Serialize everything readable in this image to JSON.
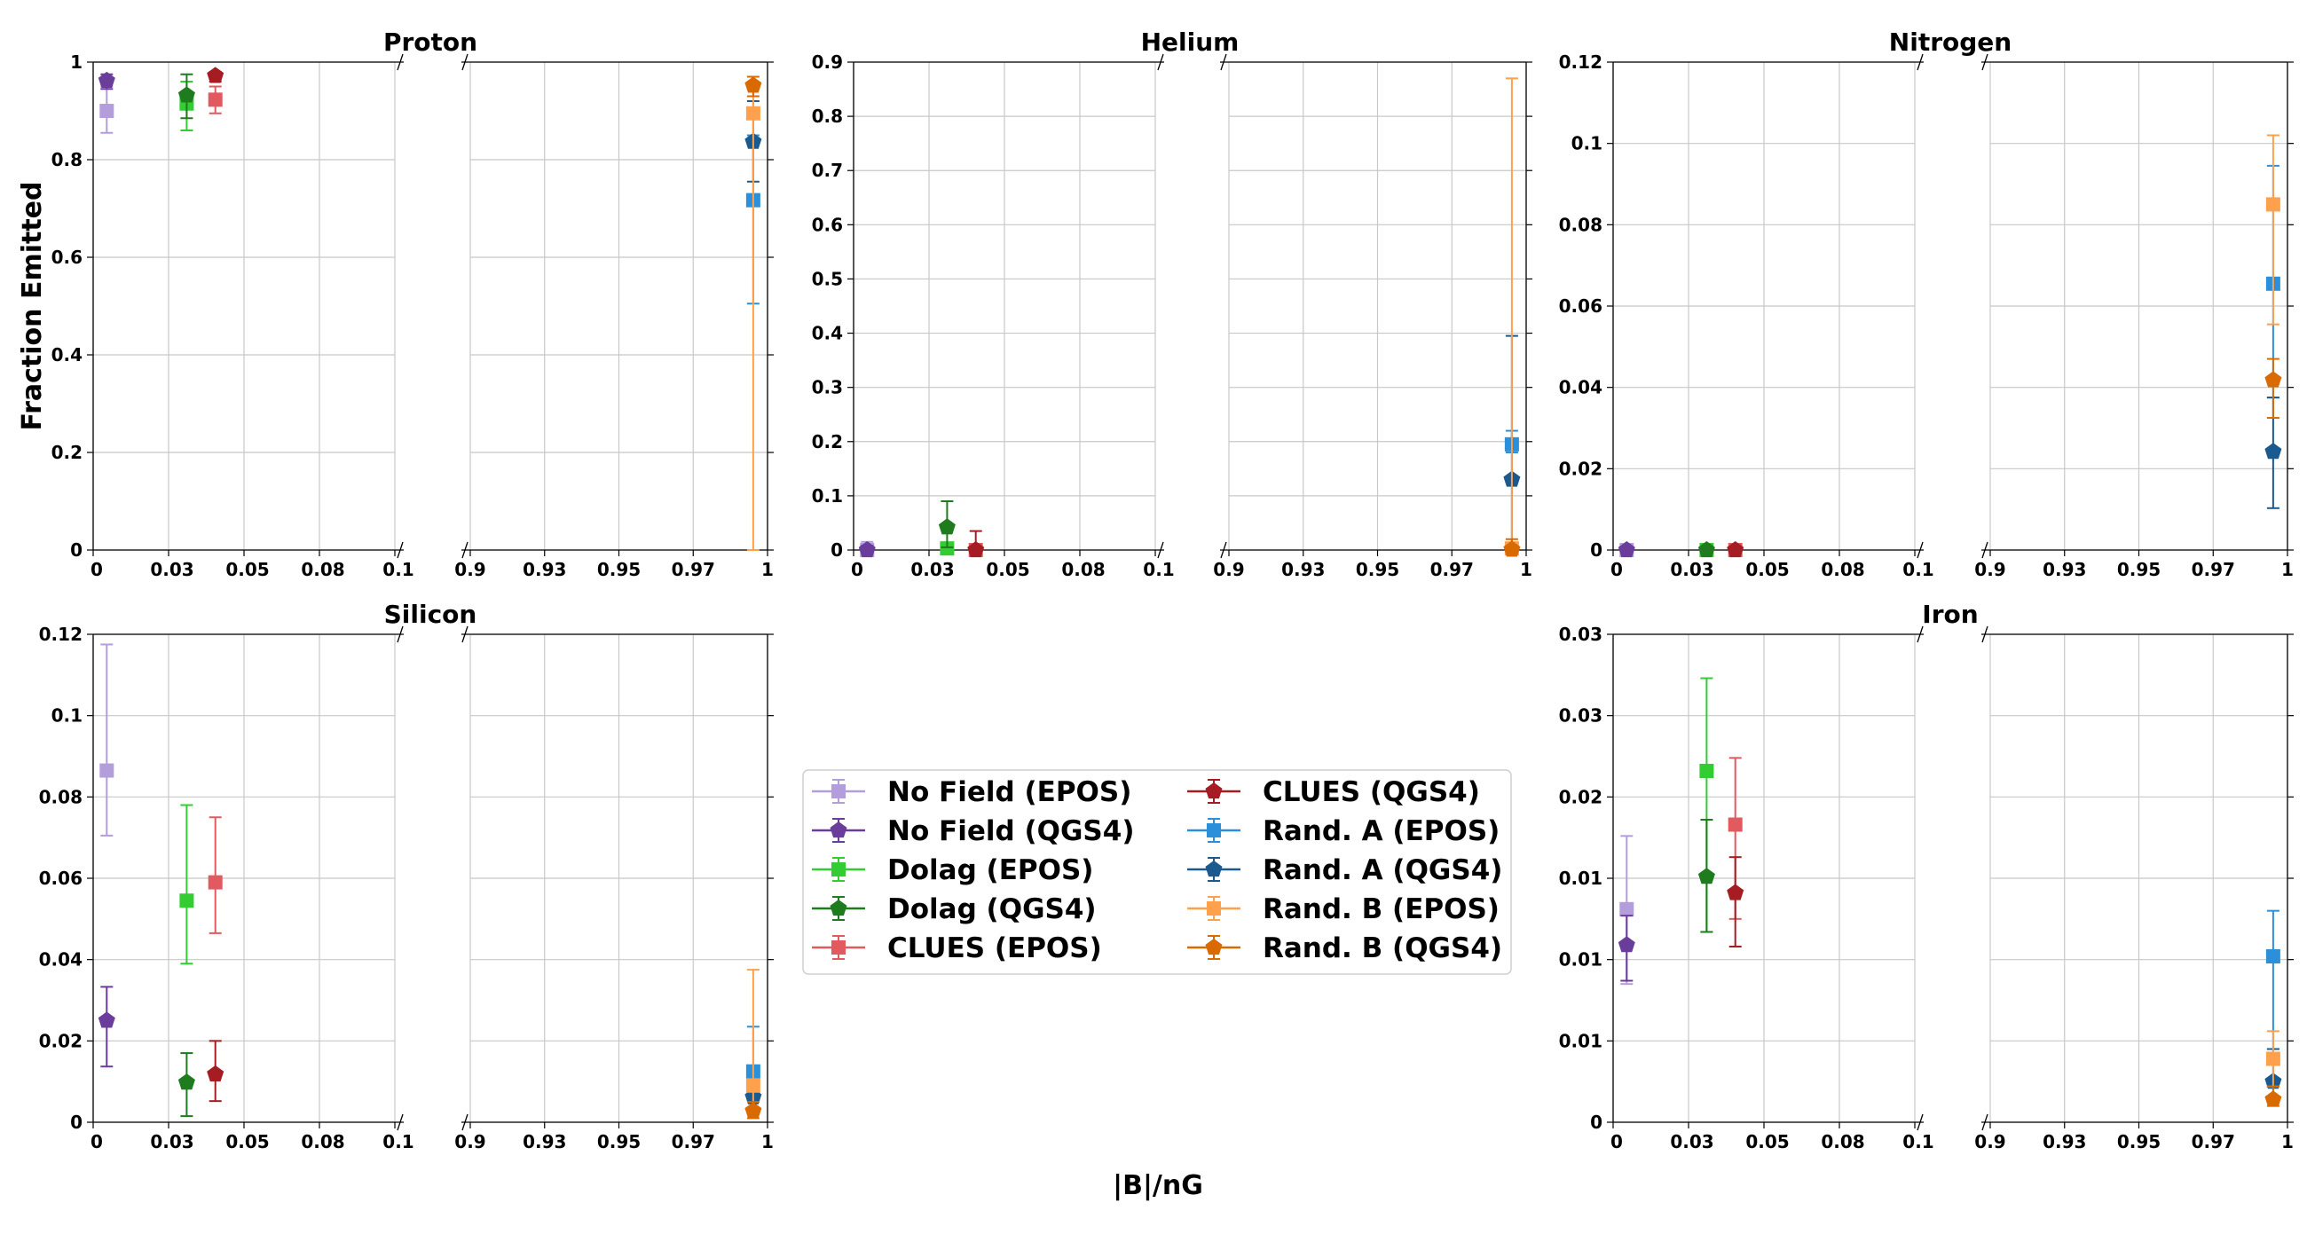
{
  "chart_data": {
    "type": "scatter",
    "xlabel": "|B|/nG",
    "ylabel": "Fraction Emitted",
    "x_categories": [
      "No Field",
      "Dolag",
      "CLUES",
      "Rand."
    ],
    "x_ticks_left": [
      "0",
      "0.03",
      "0.05",
      "0.08",
      "0.1"
    ],
    "x_ticks_right": [
      "0.9",
      "0.93",
      "0.95",
      "0.97",
      "1"
    ],
    "x_axis_broken": true,
    "grid": true,
    "legend": {
      "placement": "center",
      "columns": 2,
      "entries": [
        {
          "name": "No Field (EPOS)",
          "color": "#b39ddb",
          "marker": "square"
        },
        {
          "name": "No Field (QGS4)",
          "color": "#6a3d9a",
          "marker": "pentagon"
        },
        {
          "name": "Dolag (EPOS)",
          "color": "#33cc33",
          "marker": "square"
        },
        {
          "name": "Dolag (QGS4)",
          "color": "#1e7b1e",
          "marker": "pentagon"
        },
        {
          "name": "CLUES (EPOS)",
          "color": "#e05a5f",
          "marker": "square"
        },
        {
          "name": "CLUES (QGS4)",
          "color": "#a51c22",
          "marker": "pentagon"
        },
        {
          "name": "Rand. A (EPOS)",
          "color": "#2b8fd9",
          "marker": "square"
        },
        {
          "name": "Rand. A (QGS4)",
          "color": "#1b5a8e",
          "marker": "pentagon"
        },
        {
          "name": "Rand. B (EPOS)",
          "color": "#ffa04d",
          "marker": "square"
        },
        {
          "name": "Rand. B (QGS4)",
          "color": "#d96a00",
          "marker": "pentagon"
        }
      ]
    },
    "panels": [
      {
        "title": "Proton",
        "yticks": [
          "0",
          "0.2",
          "0.4",
          "0.6",
          "0.8",
          "1"
        ],
        "ylim": [
          0,
          1
        ],
        "points": [
          {
            "series": 0,
            "value": 0.9,
            "lo": 0.855,
            "hi": 0.95
          },
          {
            "series": 1,
            "value": 0.962,
            "lo": 0.945,
            "hi": 0.975
          },
          {
            "series": 2,
            "value": 0.915,
            "lo": 0.86,
            "hi": 0.96
          },
          {
            "series": 3,
            "value": 0.932,
            "lo": 0.885,
            "hi": 0.975
          },
          {
            "series": 4,
            "value": 0.923,
            "lo": 0.895,
            "hi": 0.95
          },
          {
            "series": 5,
            "value": 0.972,
            "lo": 0.96,
            "hi": 0.98
          },
          {
            "series": 6,
            "value": 0.717,
            "lo": 0.505,
            "hi": 0.85
          },
          {
            "series": 7,
            "value": 0.837,
            "lo": 0.755,
            "hi": 0.92
          },
          {
            "series": 8,
            "value": 0.895,
            "lo": 0.0,
            "hi": 0.96
          },
          {
            "series": 9,
            "value": 0.952,
            "lo": 0.93,
            "hi": 0.97
          }
        ]
      },
      {
        "title": "Helium",
        "yticks": [
          "0",
          "0.1",
          "0.2",
          "0.3",
          "0.4",
          "0.5",
          "0.6",
          "0.7",
          "0.8",
          "0.9"
        ],
        "ylim": [
          0,
          0.9
        ],
        "points": [
          {
            "series": 0,
            "value": 0.0,
            "lo": 0.0,
            "hi": 0.015
          },
          {
            "series": 1,
            "value": 0.0,
            "lo": 0.0,
            "hi": 0.008
          },
          {
            "series": 2,
            "value": 0.003,
            "lo": 0.0,
            "hi": 0.01
          },
          {
            "series": 3,
            "value": 0.042,
            "lo": 0.005,
            "hi": 0.09
          },
          {
            "series": 4,
            "value": 0.0,
            "lo": 0.0,
            "hi": 0.005
          },
          {
            "series": 5,
            "value": 0.0,
            "lo": 0.0,
            "hi": 0.035
          },
          {
            "series": 6,
            "value": 0.195,
            "lo": 0.18,
            "hi": 0.22
          },
          {
            "series": 7,
            "value": 0.13,
            "lo": 0.01,
            "hi": 0.395
          },
          {
            "series": 8,
            "value": 0.003,
            "lo": 0.0,
            "hi": 0.87
          },
          {
            "series": 9,
            "value": 0.001,
            "lo": 0.0,
            "hi": 0.02
          }
        ]
      },
      {
        "title": "Nitrogen",
        "yticks": [
          "0",
          "0.02",
          "0.04",
          "0.06",
          "0.08",
          "0.1",
          "0.12"
        ],
        "ylim": [
          0,
          0.12
        ],
        "points": [
          {
            "series": 0,
            "value": 0.0,
            "lo": 0.0,
            "hi": 0.0003
          },
          {
            "series": 1,
            "value": 0.0,
            "lo": 0.0,
            "hi": 0.0003
          },
          {
            "series": 2,
            "value": 0.0,
            "lo": 0.0,
            "hi": 0.0003
          },
          {
            "series": 3,
            "value": 0.0,
            "lo": 0.0,
            "hi": 0.0003
          },
          {
            "series": 4,
            "value": 0.0,
            "lo": 0.0,
            "hi": 0.0003
          },
          {
            "series": 5,
            "value": 0.0,
            "lo": 0.0,
            "hi": 0.0003
          },
          {
            "series": 6,
            "value": 0.0655,
            "lo": 0.0375,
            "hi": 0.0945
          },
          {
            "series": 7,
            "value": 0.0242,
            "lo": 0.0103,
            "hi": 0.0375
          },
          {
            "series": 8,
            "value": 0.085,
            "lo": 0.0555,
            "hi": 0.102
          },
          {
            "series": 9,
            "value": 0.0418,
            "lo": 0.0325,
            "hi": 0.047
          }
        ]
      },
      {
        "title": "Silicon",
        "yticks": [
          "0",
          "0.02",
          "0.04",
          "0.06",
          "0.08",
          "0.1",
          "0.12"
        ],
        "ylim": [
          0,
          0.12
        ],
        "points": [
          {
            "series": 0,
            "value": 0.0865,
            "lo": 0.0705,
            "hi": 0.1175
          },
          {
            "series": 1,
            "value": 0.025,
            "lo": 0.0137,
            "hi": 0.0333
          },
          {
            "series": 2,
            "value": 0.0545,
            "lo": 0.039,
            "hi": 0.078
          },
          {
            "series": 3,
            "value": 0.0098,
            "lo": 0.0015,
            "hi": 0.017
          },
          {
            "series": 4,
            "value": 0.059,
            "lo": 0.0465,
            "hi": 0.075
          },
          {
            "series": 5,
            "value": 0.0118,
            "lo": 0.0052,
            "hi": 0.02
          },
          {
            "series": 6,
            "value": 0.0125,
            "lo": 0.006,
            "hi": 0.0235
          },
          {
            "series": 7,
            "value": 0.0062,
            "lo": 0.003,
            "hi": 0.01
          },
          {
            "series": 8,
            "value": 0.009,
            "lo": 0.002,
            "hi": 0.0375
          },
          {
            "series": 9,
            "value": 0.0028,
            "lo": 0.001,
            "hi": 0.005
          }
        ]
      },
      {
        "title": "Iron",
        "yticks": [
          "0",
          "0.01",
          "0.01",
          "0.01",
          "0.02",
          "0.03",
          "0.03"
        ],
        "ylim": [
          0,
          0.03
        ],
        "points": [
          {
            "series": 0,
            "value": 0.0131,
            "lo": 0.0085,
            "hi": 0.0176
          },
          {
            "series": 1,
            "value": 0.0109,
            "lo": 0.0087,
            "hi": 0.0127
          },
          {
            "series": 2,
            "value": 0.0216,
            "lo": 0.0117,
            "hi": 0.0273
          },
          {
            "series": 3,
            "value": 0.0151,
            "lo": 0.0117,
            "hi": 0.0186
          },
          {
            "series": 4,
            "value": 0.0183,
            "lo": 0.0125,
            "hi": 0.0224
          },
          {
            "series": 5,
            "value": 0.0141,
            "lo": 0.0108,
            "hi": 0.0163
          },
          {
            "series": 6,
            "value": 0.0102,
            "lo": 0.0045,
            "hi": 0.013
          },
          {
            "series": 7,
            "value": 0.0025,
            "lo": 0.0022,
            "hi": 0.0045
          },
          {
            "series": 8,
            "value": 0.0039,
            "lo": 0.0022,
            "hi": 0.0056
          },
          {
            "series": 9,
            "value": 0.0014,
            "lo": 0.001,
            "hi": 0.0022
          }
        ]
      }
    ]
  }
}
